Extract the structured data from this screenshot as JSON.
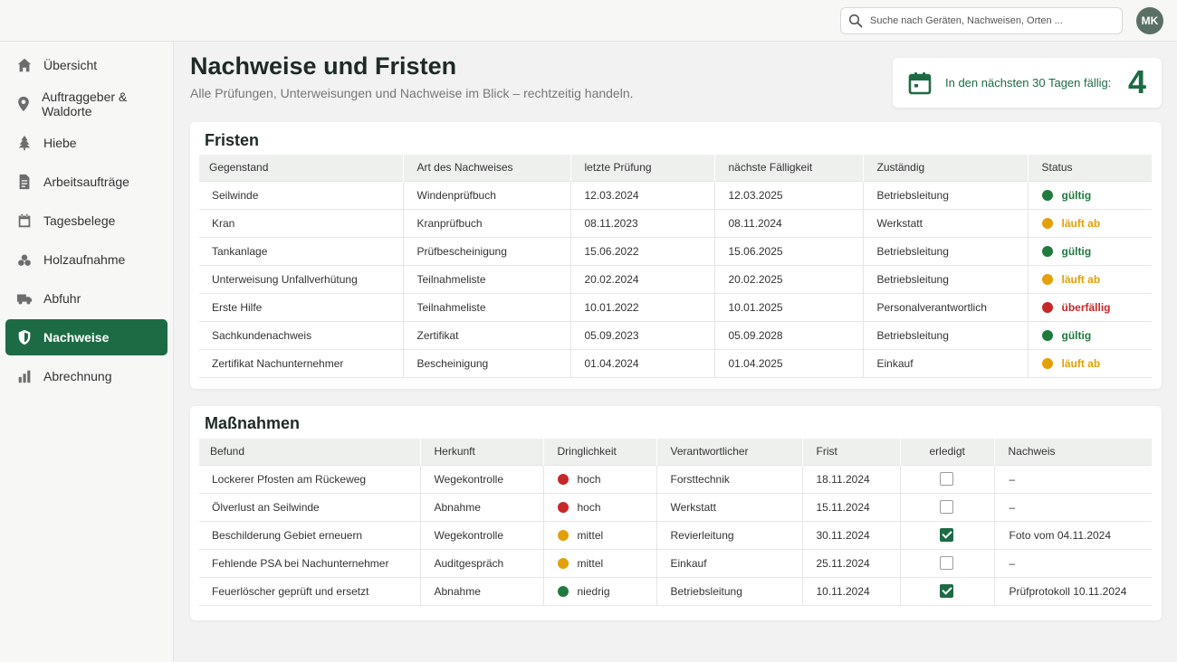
{
  "search": {
    "placeholder": "Suche nach Geräten, Nachweisen, Orten ..."
  },
  "user": {
    "initials": "MK"
  },
  "sidebar": {
    "items": [
      {
        "label": "Übersicht",
        "icon": "home-icon",
        "active": false
      },
      {
        "label": "Auftraggeber & Waldorte",
        "icon": "location-pin-icon",
        "active": false
      },
      {
        "label": "Hiebe",
        "icon": "tree-icon",
        "active": false
      },
      {
        "label": "Arbeitsaufträge",
        "icon": "document-icon",
        "active": false
      },
      {
        "label": "Tagesbelege",
        "icon": "calendar-icon",
        "active": false
      },
      {
        "label": "Holzaufnahme",
        "icon": "log-pile-icon",
        "active": false
      },
      {
        "label": "Abfuhr",
        "icon": "truck-icon",
        "active": false
      },
      {
        "label": "Nachweise",
        "icon": "shield-icon",
        "active": true
      },
      {
        "label": "Abrechnung",
        "icon": "bar-chart-icon",
        "active": false
      }
    ]
  },
  "header": {
    "title": "Nachweise und Fristen",
    "subtitle": "Alle Prüfungen, Unterweisungen und Nachweise im Blick – rechtzeitig handeln."
  },
  "due": {
    "label": "In den nächsten 30 Tagen fällig:",
    "count": "4"
  },
  "colors": {
    "accent": "#1d6b45",
    "green": "#1f7a3e",
    "orange": "#e3a008",
    "red": "#c62828"
  },
  "fristen": {
    "title": "Fristen",
    "columns": [
      "Gegenstand",
      "Art des Nachweises",
      "letzte Prüfung",
      "nächste Fälligkeit",
      "Zuständig",
      "Status"
    ],
    "rows": [
      {
        "gegenstand": "Seilwinde",
        "art": "Windenprüfbuch",
        "letzte": "12.03.2024",
        "naechste": "12.03.2025",
        "zustaendig": "Betriebsleitung",
        "status": "gültig",
        "level": "green"
      },
      {
        "gegenstand": "Kran",
        "art": "Kranprüfbuch",
        "letzte": "08.11.2023",
        "naechste": "08.11.2024",
        "zustaendig": "Werkstatt",
        "status": "läuft ab",
        "level": "orange"
      },
      {
        "gegenstand": "Tankanlage",
        "art": "Prüfbescheinigung",
        "letzte": "15.06.2022",
        "naechste": "15.06.2025",
        "zustaendig": "Betriebsleitung",
        "status": "gültig",
        "level": "green"
      },
      {
        "gegenstand": "Unterweisung Unfallverhütung",
        "art": "Teilnahmeliste",
        "letzte": "20.02.2024",
        "naechste": "20.02.2025",
        "zustaendig": "Betriebsleitung",
        "status": "läuft ab",
        "level": "orange"
      },
      {
        "gegenstand": "Erste Hilfe",
        "art": "Teilnahmeliste",
        "letzte": "10.01.2022",
        "naechste": "10.01.2025",
        "zustaendig": "Personalverantwortlich",
        "status": "überfällig",
        "level": "red"
      },
      {
        "gegenstand": "Sachkundenachweis",
        "art": "Zertifikat",
        "letzte": "05.09.2023",
        "naechste": "05.09.2028",
        "zustaendig": "Betriebsleitung",
        "status": "gültig",
        "level": "green"
      },
      {
        "gegenstand": "Zertifikat Nachunternehmer",
        "art": "Bescheinigung",
        "letzte": "01.04.2024",
        "naechste": "01.04.2025",
        "zustaendig": "Einkauf",
        "status": "läuft ab",
        "level": "orange"
      }
    ]
  },
  "massnahmen": {
    "title": "Maßnahmen",
    "columns": [
      "Befund",
      "Herkunft",
      "Dringlichkeit",
      "Verantwortlicher",
      "Frist",
      "erledigt",
      "Nachweis"
    ],
    "rows": [
      {
        "befund": "Lockerer Pfosten am Rückeweg",
        "herkunft": "Wegekontrolle",
        "dringlichkeit": "hoch",
        "level": "red",
        "verantwortlicher": "Forsttechnik",
        "frist": "18.11.2024",
        "erledigt": false,
        "nachweis": "–"
      },
      {
        "befund": "Ölverlust an Seilwinde",
        "herkunft": "Abnahme",
        "dringlichkeit": "hoch",
        "level": "red",
        "verantwortlicher": "Werkstatt",
        "frist": "15.11.2024",
        "erledigt": false,
        "nachweis": "–"
      },
      {
        "befund": "Beschilderung Gebiet erneuern",
        "herkunft": "Wegekontrolle",
        "dringlichkeit": "mittel",
        "level": "orange",
        "verantwortlicher": "Revierleitung",
        "frist": "30.11.2024",
        "erledigt": true,
        "nachweis": "Foto vom 04.11.2024"
      },
      {
        "befund": "Fehlende PSA bei Nachunternehmer",
        "herkunft": "Auditgespräch",
        "dringlichkeit": "mittel",
        "level": "orange",
        "verantwortlicher": "Einkauf",
        "frist": "25.11.2024",
        "erledigt": false,
        "nachweis": "–"
      },
      {
        "befund": "Feuerlöscher geprüft und ersetzt",
        "herkunft": "Abnahme",
        "dringlichkeit": "niedrig",
        "level": "green",
        "verantwortlicher": "Betriebsleitung",
        "frist": "10.11.2024",
        "erledigt": true,
        "nachweis": "Prüfprotokoll 10.11.2024"
      }
    ]
  }
}
